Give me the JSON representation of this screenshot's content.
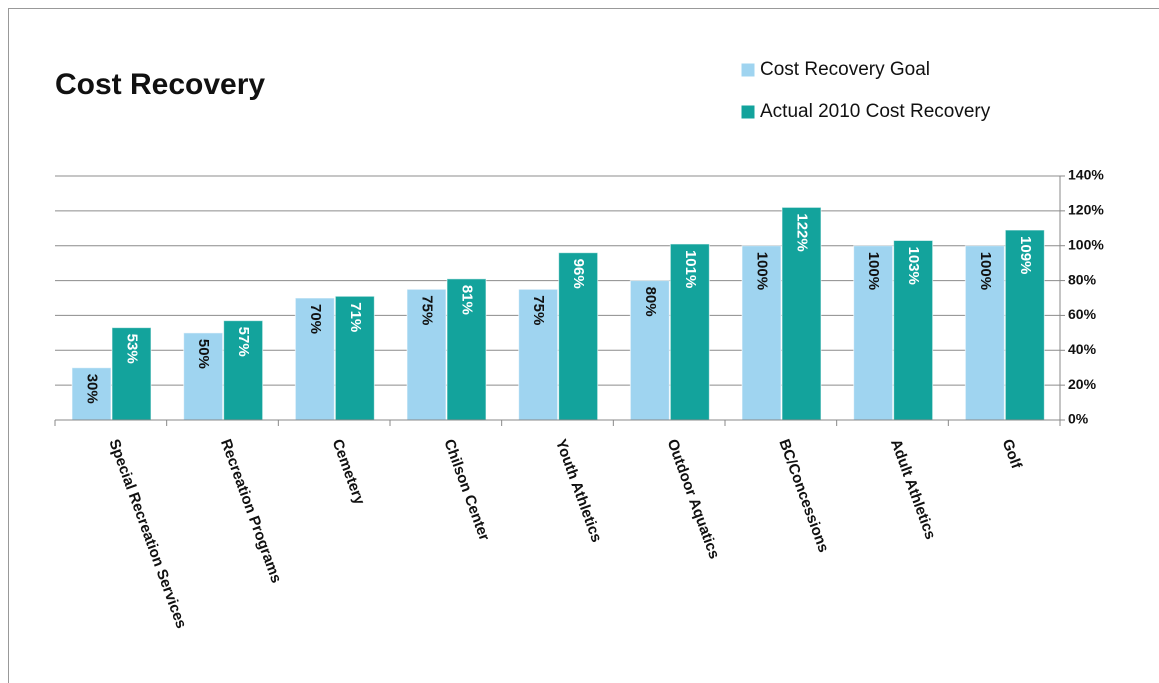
{
  "chart_data": {
    "type": "bar",
    "title": "Cost Recovery",
    "categories": [
      "Special Recreation Services",
      "Recreation Programs",
      "Cemetery",
      "Chilson Center",
      "Youth Athletics",
      "Outdoor Aquatics",
      "BC/Concessions",
      "Adult Athletics",
      "Golf"
    ],
    "series": [
      {
        "name": "Cost Recovery Goal",
        "color": "#9fd4f0",
        "label_color": "#111111",
        "values": [
          30,
          50,
          70,
          75,
          75,
          80,
          100,
          100,
          100
        ],
        "value_labels": [
          "30%",
          "50%",
          "70%",
          "75%",
          "75%",
          "80%",
          "100%",
          "100%",
          "100%"
        ]
      },
      {
        "name": "Actual 2010 Cost Recovery",
        "color": "#13a39c",
        "label_color": "#ffffff",
        "values": [
          53,
          57,
          71,
          81,
          96,
          101,
          122,
          103,
          109
        ],
        "value_labels": [
          "53%",
          "57%",
          "71%",
          "81%",
          "96%",
          "101%",
          "122%",
          "103%",
          "109%"
        ]
      }
    ],
    "ylim": [
      0,
      140
    ],
    "yticks": [
      {
        "value": 0,
        "label": "0%"
      },
      {
        "value": 20,
        "label": "20%"
      },
      {
        "value": 40,
        "label": "40%"
      },
      {
        "value": 60,
        "label": "60%"
      },
      {
        "value": 80,
        "label": "80%"
      },
      {
        "value": 100,
        "label": "100%"
      },
      {
        "value": 120,
        "label": "120%"
      },
      {
        "value": 140,
        "label": "140%"
      }
    ],
    "grid": true
  }
}
